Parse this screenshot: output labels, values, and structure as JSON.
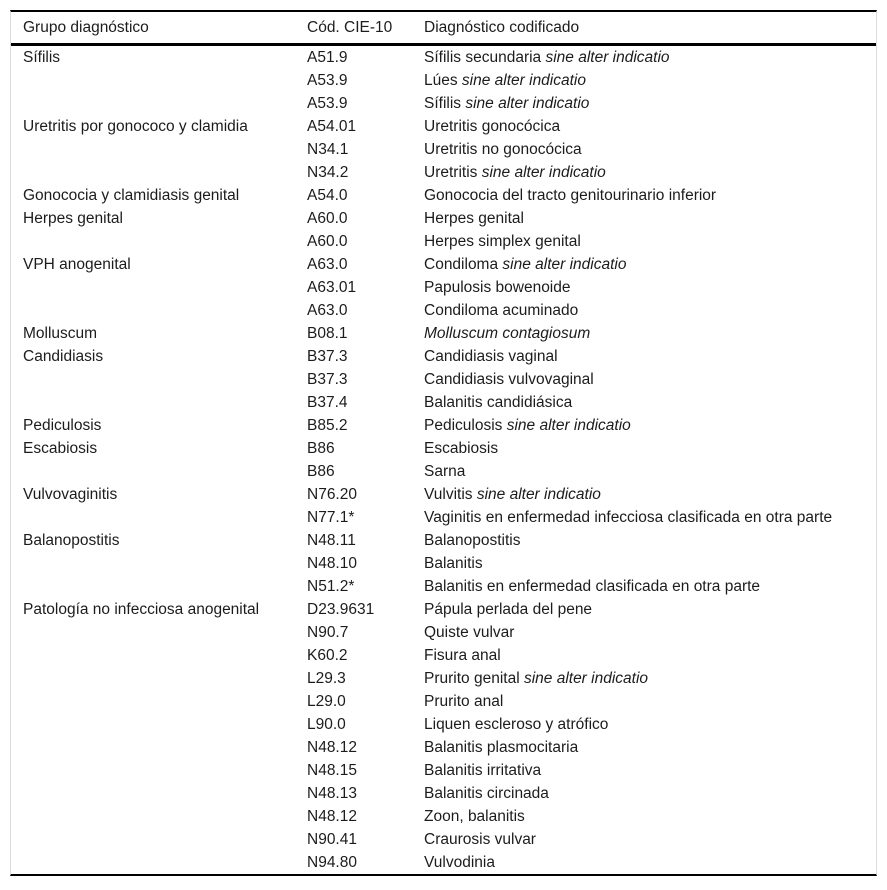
{
  "table": {
    "columns": [
      {
        "label": "Grupo diagnóstico"
      },
      {
        "label": "Cód. CIE-10"
      },
      {
        "label": "Diagnóstico codificado"
      }
    ],
    "rows": [
      {
        "group": "Sífilis",
        "code": "A51.9",
        "dx": "Sífilis secundaria ",
        "dx_italic": "sine alter indicatio"
      },
      {
        "group": "",
        "code": "A53.9",
        "dx": "Lúes ",
        "dx_italic": "sine alter indicatio"
      },
      {
        "group": "",
        "code": "A53.9",
        "dx": "Sífilis ",
        "dx_italic": "sine alter indicatio"
      },
      {
        "group": "Uretritis por gonococo y clamidia",
        "code": "A54.01",
        "dx": "Uretritis gonocócica",
        "dx_italic": ""
      },
      {
        "group": "",
        "code": "N34.1",
        "dx": "Uretritis no gonocócica",
        "dx_italic": ""
      },
      {
        "group": "",
        "code": "N34.2",
        "dx": "Uretritis ",
        "dx_italic": "sine alter indicatio"
      },
      {
        "group": "Gonococia y clamidiasis genital",
        "code": "A54.0",
        "dx": "Gonococia del tracto genitourinario inferior",
        "dx_italic": ""
      },
      {
        "group": "Herpes genital",
        "code": "A60.0",
        "dx": "Herpes genital",
        "dx_italic": ""
      },
      {
        "group": "",
        "code": "A60.0",
        "dx": "Herpes simplex genital",
        "dx_italic": ""
      },
      {
        "group": "VPH anogenital",
        "code": "A63.0",
        "dx": "Condiloma ",
        "dx_italic": "sine alter indicatio"
      },
      {
        "group": "",
        "code": "A63.01",
        "dx": "Papulosis bowenoide",
        "dx_italic": ""
      },
      {
        "group": "",
        "code": "A63.0",
        "dx": "Condiloma acuminado",
        "dx_italic": ""
      },
      {
        "group": "Molluscum",
        "code": "B08.1",
        "dx": "",
        "dx_italic": "Molluscum contagiosum"
      },
      {
        "group": "Candidiasis",
        "code": "B37.3",
        "dx": "Candidiasis vaginal",
        "dx_italic": ""
      },
      {
        "group": "",
        "code": "B37.3",
        "dx": "Candidiasis vulvovaginal",
        "dx_italic": ""
      },
      {
        "group": "",
        "code": "B37.4",
        "dx": "Balanitis candidiásica",
        "dx_italic": ""
      },
      {
        "group": "Pediculosis",
        "code": "B85.2",
        "dx": "Pediculosis ",
        "dx_italic": "sine alter indicatio"
      },
      {
        "group": "Escabiosis",
        "code": "B86",
        "dx": "Escabiosis",
        "dx_italic": ""
      },
      {
        "group": "",
        "code": "B86",
        "dx": "Sarna",
        "dx_italic": ""
      },
      {
        "group": "Vulvovaginitis",
        "code": "N76.20",
        "dx": "Vulvitis ",
        "dx_italic": "sine alter indicatio"
      },
      {
        "group": "",
        "code": "N77.1*",
        "dx": "Vaginitis en enfermedad infecciosa clasificada en otra parte",
        "dx_italic": ""
      },
      {
        "group": "Balanopostitis",
        "code": "N48.11",
        "dx": "Balanopostitis",
        "dx_italic": ""
      },
      {
        "group": "",
        "code": "N48.10",
        "dx": "Balanitis",
        "dx_italic": ""
      },
      {
        "group": "",
        "code": "N51.2*",
        "dx": "Balanitis en enfermedad clasificada en otra parte",
        "dx_italic": ""
      },
      {
        "group": "Patología no infecciosa anogenital",
        "code": "D23.9631",
        "dx": "Pápula perlada del pene",
        "dx_italic": ""
      },
      {
        "group": "",
        "code": "N90.7",
        "dx": "Quiste vulvar",
        "dx_italic": ""
      },
      {
        "group": "",
        "code": "K60.2",
        "dx": "Fisura anal",
        "dx_italic": ""
      },
      {
        "group": "",
        "code": "L29.3",
        "dx": "Prurito genital ",
        "dx_italic": "sine alter indicatio"
      },
      {
        "group": "",
        "code": "L29.0",
        "dx": "Prurito anal",
        "dx_italic": ""
      },
      {
        "group": "",
        "code": "L90.0",
        "dx": "Liquen escleroso y atrófico",
        "dx_italic": ""
      },
      {
        "group": "",
        "code": "N48.12",
        "dx": "Balanitis plasmocitaria",
        "dx_italic": ""
      },
      {
        "group": "",
        "code": "N48.15",
        "dx": "Balanitis irritativa",
        "dx_italic": ""
      },
      {
        "group": "",
        "code": "N48.13",
        "dx": "Balanitis circinada",
        "dx_italic": ""
      },
      {
        "group": "",
        "code": "N48.12",
        "dx": "Zoon, balanitis",
        "dx_italic": ""
      },
      {
        "group": "",
        "code": "N90.41",
        "dx": "Craurosis vulvar",
        "dx_italic": ""
      },
      {
        "group": "",
        "code": "N94.80",
        "dx": "Vulvodinia",
        "dx_italic": ""
      }
    ]
  }
}
